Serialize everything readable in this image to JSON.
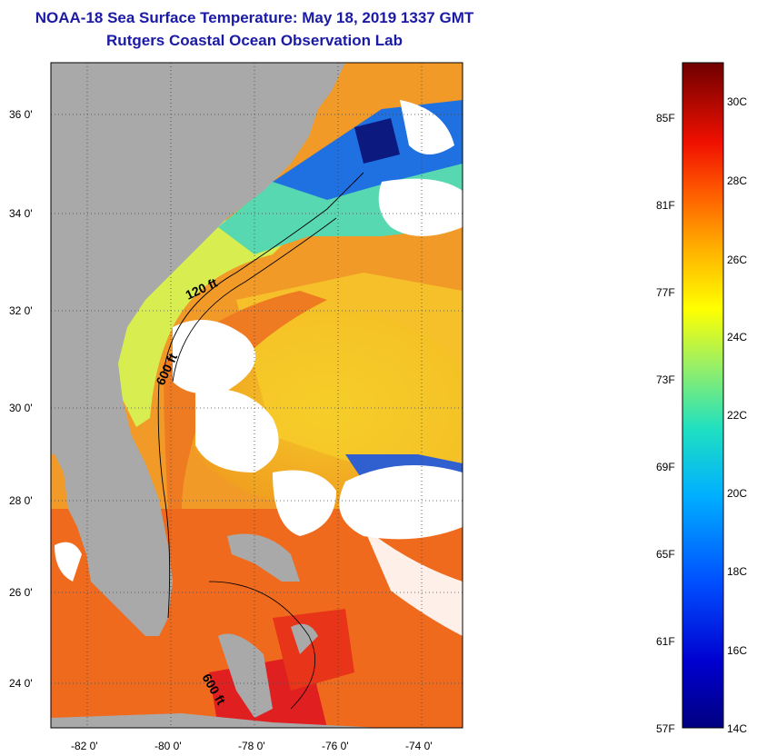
{
  "header": {
    "title": "NOAA-18 Sea Surface Temperature:  May 18, 2019 1337 GMT",
    "subtitle": "Rutgers Coastal Ocean Observation Lab"
  },
  "map": {
    "lat_labels": [
      "36 0'",
      "34 0'",
      "32 0'",
      "30 0'",
      "28 0'",
      "26 0'",
      "24 0'"
    ],
    "lon_labels": [
      "-82 0'",
      "-80 0'",
      "-78 0'",
      "-76 0'",
      "-74 0'"
    ],
    "contours": [
      "120 ft",
      "600 ft",
      "600 ft"
    ],
    "colors": {
      "land": "#a9a9a9",
      "cloud": "#ffffff",
      "warm": "#f08020",
      "gulfstream": "#e85018",
      "hot": "#e01818",
      "mid": "#f0d020",
      "cool": "#30b0e0",
      "cold": "#1040c0"
    }
  },
  "colorbar": {
    "f_labels": [
      "85F",
      "81F",
      "77F",
      "73F",
      "69F",
      "65F",
      "61F",
      "57F"
    ],
    "c_labels": [
      "30C",
      "28C",
      "26C",
      "24C",
      "22C",
      "20C",
      "18C",
      "16C",
      "14C"
    ]
  }
}
